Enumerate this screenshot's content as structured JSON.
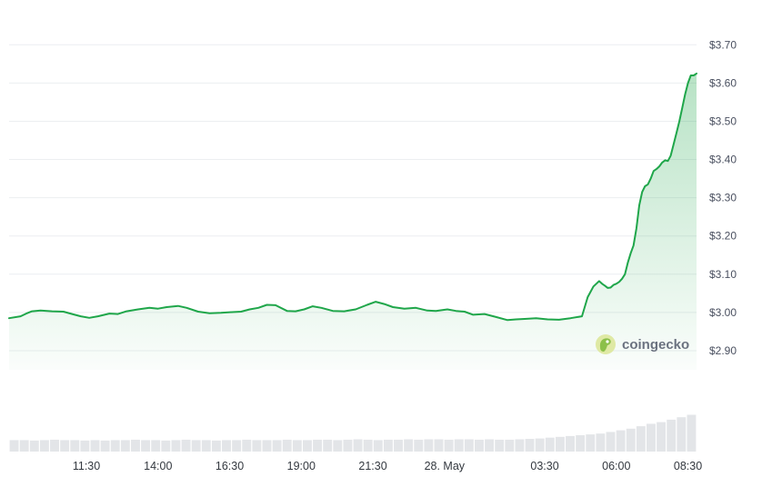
{
  "chart_data": {
    "type": "area",
    "title": "",
    "xlabel": "",
    "ylabel": "",
    "ylim": [
      2.85,
      3.715
    ],
    "y_ticks": [
      "$2.90",
      "$3.00",
      "$3.10",
      "$3.20",
      "$3.30",
      "$3.40",
      "$3.50",
      "$3.60",
      "$3.70"
    ],
    "y_tick_values": [
      2.9,
      3.0,
      3.1,
      3.2,
      3.3,
      3.4,
      3.5,
      3.6,
      3.7
    ],
    "x_ticks": [
      "11:30",
      "14:00",
      "16:30",
      "19:00",
      "21:30",
      "28. May",
      "03:30",
      "06:00",
      "08:30"
    ],
    "x_tick_hours": [
      11.5,
      14.0,
      16.5,
      19.0,
      21.5,
      24.0,
      27.5,
      30.0,
      32.5
    ],
    "x_range_hours": [
      8.8,
      32.8
    ],
    "grid": true,
    "line_color": "#1fa64a",
    "fill_color": "#1fa64a",
    "volume_color": "#e3e5e8",
    "watermark": "coingecko",
    "series": [
      {
        "x": [
          8.8,
          9.2,
          9.4,
          9.6,
          9.9,
          10.3,
          10.7,
          11.0,
          11.3,
          11.6,
          11.9,
          12.3,
          12.6,
          12.9,
          13.3,
          13.7,
          14.0,
          14.3,
          14.7,
          15.0,
          15.4,
          15.8,
          16.2,
          16.6,
          16.9,
          17.2,
          17.5,
          17.8,
          18.1,
          18.5,
          18.8,
          19.1,
          19.4,
          19.7,
          20.1,
          20.5,
          20.9,
          21.3,
          21.6,
          21.9,
          22.2,
          22.6,
          23.0,
          23.4,
          23.7,
          24.1,
          24.4,
          24.7,
          25.0,
          25.4,
          25.8,
          26.2,
          26.5,
          26.8,
          27.2,
          27.6,
          28.0,
          28.4,
          28.8,
          29.0,
          29.2,
          29.3,
          29.4,
          29.5,
          29.6,
          29.7,
          29.8,
          29.9,
          30.0,
          30.1,
          30.2,
          30.3,
          30.4,
          30.5,
          30.6,
          30.7,
          30.8,
          30.9,
          31.0,
          31.1,
          31.2,
          31.3,
          31.4,
          31.5,
          31.6,
          31.7,
          31.8,
          31.9,
          32.0,
          32.1,
          32.2,
          32.3,
          32.4,
          32.5,
          32.6,
          32.7,
          32.8
        ],
        "y": [
          2.985,
          2.99,
          2.997,
          3.003,
          3.005,
          3.003,
          3.002,
          2.996,
          2.99,
          2.986,
          2.99,
          2.997,
          2.996,
          3.003,
          3.008,
          3.012,
          3.01,
          3.014,
          3.017,
          3.012,
          3.002,
          2.998,
          2.999,
          3.001,
          3.002,
          3.008,
          3.012,
          3.02,
          3.019,
          3.004,
          3.003,
          3.008,
          3.016,
          3.012,
          3.004,
          3.003,
          3.008,
          3.02,
          3.028,
          3.022,
          3.014,
          3.01,
          3.012,
          3.005,
          3.004,
          3.008,
          3.004,
          3.002,
          2.994,
          2.996,
          2.988,
          2.98,
          2.982,
          2.983,
          2.985,
          2.982,
          2.981,
          2.985,
          2.99,
          3.04,
          3.068,
          3.075,
          3.082,
          3.075,
          3.07,
          3.064,
          3.065,
          3.072,
          3.075,
          3.08,
          3.088,
          3.1,
          3.13,
          3.155,
          3.175,
          3.22,
          3.28,
          3.315,
          3.33,
          3.335,
          3.35,
          3.37,
          3.375,
          3.382,
          3.392,
          3.398,
          3.396,
          3.41,
          3.44,
          3.47,
          3.5,
          3.535,
          3.57,
          3.6,
          3.62,
          3.62,
          3.625
        ]
      }
    ],
    "volume": [
      0.28,
      0.28,
      0.27,
      0.28,
      0.29,
      0.28,
      0.28,
      0.27,
      0.28,
      0.27,
      0.28,
      0.28,
      0.29,
      0.28,
      0.28,
      0.27,
      0.28,
      0.29,
      0.28,
      0.28,
      0.27,
      0.28,
      0.28,
      0.29,
      0.28,
      0.28,
      0.28,
      0.29,
      0.28,
      0.28,
      0.29,
      0.29,
      0.28,
      0.29,
      0.3,
      0.29,
      0.28,
      0.29,
      0.29,
      0.3,
      0.29,
      0.3,
      0.3,
      0.29,
      0.3,
      0.3,
      0.29,
      0.3,
      0.29,
      0.29,
      0.3,
      0.31,
      0.32,
      0.34,
      0.36,
      0.38,
      0.4,
      0.42,
      0.44,
      0.48,
      0.52,
      0.56,
      0.62,
      0.68,
      0.72,
      0.78,
      0.84,
      0.9
    ]
  }
}
